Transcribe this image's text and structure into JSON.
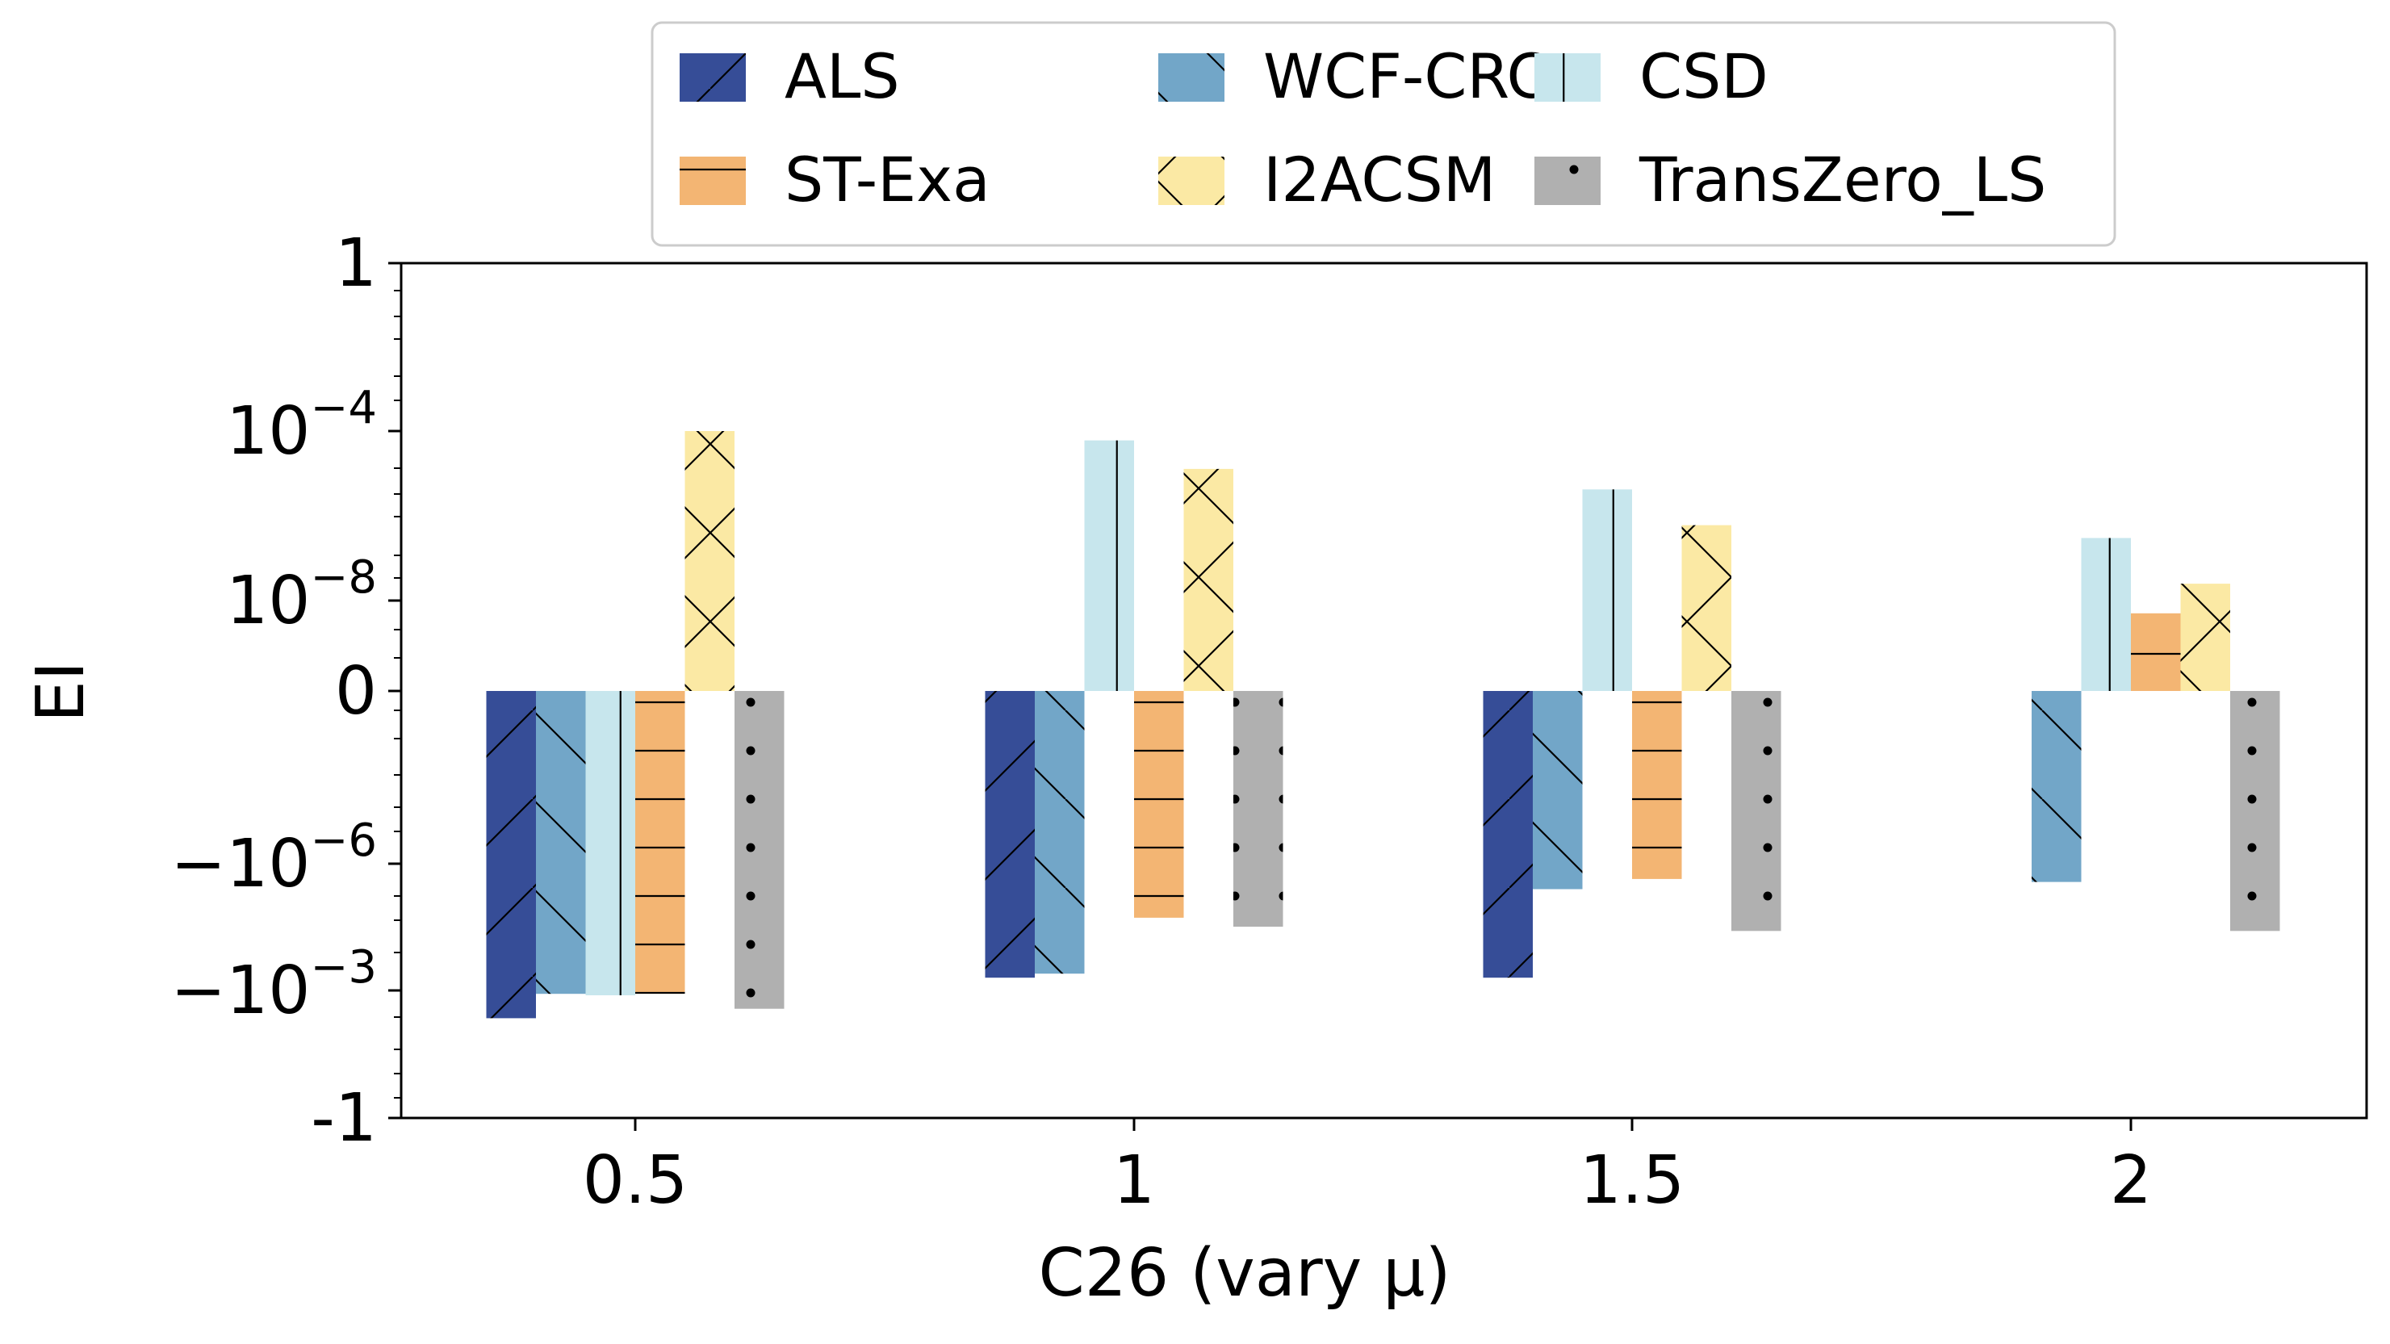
{
  "chart_data": {
    "type": "bar",
    "xlabel": "C26 (vary μ)",
    "ylabel": "EI",
    "y_scale": "symlog",
    "ylim": [
      -1,
      1
    ],
    "categories": [
      "0.5",
      "1",
      "1.5",
      "2"
    ],
    "y_ticks": [
      {
        "value": 1,
        "label_base": "1",
        "label_exp": ""
      },
      {
        "value": 0.0001,
        "label_base": "10",
        "label_exp": "−4"
      },
      {
        "value": 1e-08,
        "label_base": "10",
        "label_exp": "−8"
      },
      {
        "value": 0,
        "label_base": "0",
        "label_exp": ""
      },
      {
        "value": -1e-06,
        "label_base": "−10",
        "label_exp": "−6"
      },
      {
        "value": -0.001,
        "label_base": "−10",
        "label_exp": "−3"
      },
      {
        "value": -1,
        "label_base": "-1",
        "label_exp": ""
      }
    ],
    "legend_position": "top-center, outside plot",
    "series": [
      {
        "name": "ALS",
        "color": "#364d97",
        "hatch": "diag-up",
        "values": [
          -0.0045,
          -0.0005,
          -0.0005,
          null
        ]
      },
      {
        "name": "WCF-CRC",
        "color": "#72a6c8",
        "hatch": "diag-down",
        "values": [
          -0.0012,
          -0.0004,
          -4e-06,
          -2.7e-06
        ]
      },
      {
        "name": "CSD",
        "color": "#c7e6ed",
        "hatch": "vertical",
        "values": [
          -0.0013,
          6e-05,
          4.2e-06,
          3e-07
        ]
      },
      {
        "name": "ST-Exa",
        "color": "#f3b573",
        "hatch": "horizontal",
        "values": [
          -0.0012,
          -1.9e-05,
          -2.3e-06,
          5e-09
        ]
      },
      {
        "name": "I2ACSM",
        "color": "#fbe9a4",
        "hatch": "cross",
        "values": [
          0.0001,
          1.28e-05,
          6e-07,
          2.5e-08
        ]
      },
      {
        "name": "TransZero_LS",
        "color": "#b0b0b0",
        "hatch": "dots",
        "values": [
          -0.0027,
          -3.1e-05,
          -3.9e-05,
          -3.9e-05
        ]
      }
    ]
  }
}
